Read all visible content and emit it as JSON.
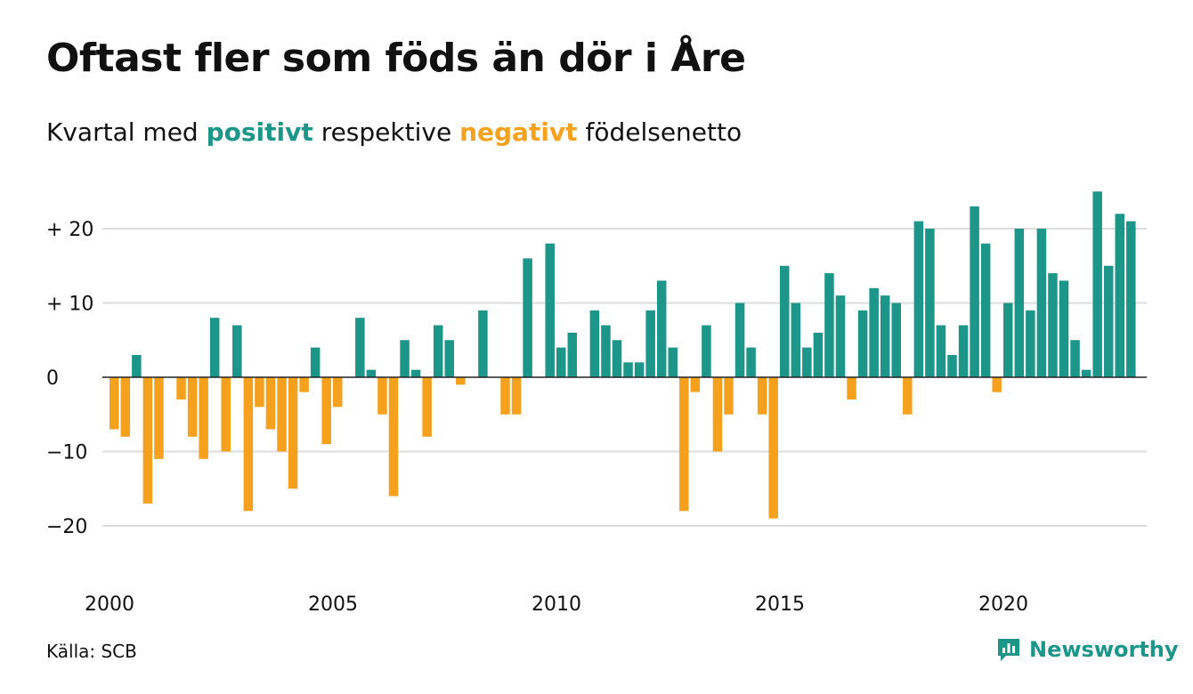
{
  "header": {
    "title": "Oftast fler som föds än dör i Åre",
    "subtitle_prefix": "Kvartal med",
    "subtitle_positive": "positivt",
    "subtitle_middle": "respektive",
    "subtitle_negative": "negativt",
    "subtitle_suffix": "födelsenetto"
  },
  "footer": {
    "source": "Källa: SCB",
    "brand": "Newsworthy",
    "brand_icon": "bar-chart-logo-icon"
  },
  "colors": {
    "positive": "#1b9688",
    "negative": "#f5a11e",
    "grid": "#dddddd",
    "baseline": "#222222",
    "text": "#111111"
  },
  "chart_data": {
    "type": "bar",
    "title": "Oftast fler som föds än dör i Åre",
    "subtitle": "Kvartal med positivt respektive negativt födelsenetto",
    "x_start": "2000 Q1",
    "x_ticks": [
      "2000",
      "2005",
      "2010",
      "2015",
      "2020"
    ],
    "y_ticks": [
      {
        "value": 20,
        "label": "+ 20"
      },
      {
        "value": 10,
        "label": "+ 10"
      },
      {
        "value": 0,
        "label": "0"
      },
      {
        "value": -10,
        "label": "−10"
      },
      {
        "value": -20,
        "label": "−20"
      }
    ],
    "ylim": [
      -25,
      25
    ],
    "grid": true,
    "values": [
      -7,
      -8,
      3,
      -17,
      -11,
      0,
      -3,
      -8,
      -11,
      8,
      -10,
      7,
      -18,
      -4,
      -7,
      -10,
      -15,
      -2,
      4,
      -9,
      -4,
      0,
      8,
      1,
      -5,
      -16,
      5,
      1,
      -8,
      7,
      5,
      -1,
      0,
      9,
      0,
      -5,
      -5,
      16,
      0,
      18,
      4,
      6,
      0,
      9,
      7,
      5,
      2,
      2,
      9,
      13,
      4,
      -18,
      -2,
      7,
      -10,
      -5,
      10,
      4,
      -5,
      -19,
      15,
      10,
      4,
      6,
      14,
      11,
      -3,
      9,
      12,
      11,
      10,
      -5,
      21,
      20,
      7,
      3,
      7,
      23,
      18,
      -2,
      10,
      20,
      9,
      20,
      14,
      13,
      5,
      1,
      25,
      15,
      22,
      21
    ]
  }
}
